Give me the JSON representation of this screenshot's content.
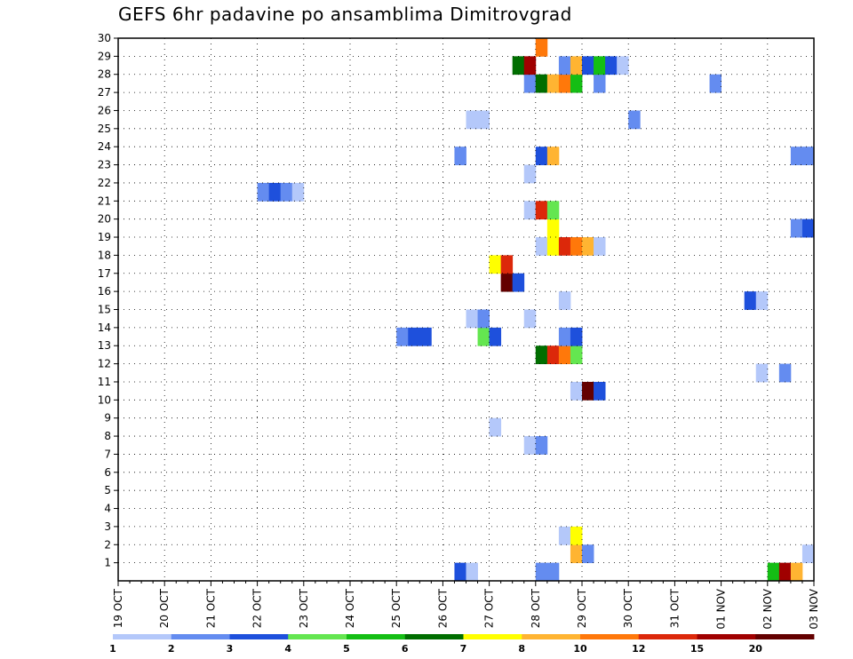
{
  "chart_data": {
    "type": "heatmap",
    "title": "GEFS 6hr padavine po ansamblima Dimitrovgrad",
    "x_labels": [
      "19 OCT",
      "20 OCT",
      "21 OCT",
      "22 OCT",
      "23 OCT",
      "24 OCT",
      "25 OCT",
      "26 OCT",
      "27 OCT",
      "28 OCT",
      "29 OCT",
      "30 OCT",
      "31 OCT",
      "01 NOV",
      "02 NOV",
      "03 NOV"
    ],
    "y_labels": [
      "1",
      "2",
      "3",
      "4",
      "5",
      "6",
      "7",
      "8",
      "9",
      "10",
      "11",
      "12",
      "13",
      "14",
      "15",
      "16",
      "17",
      "18",
      "19",
      "20",
      "21",
      "22",
      "23",
      "24",
      "25",
      "26",
      "27",
      "28",
      "29",
      "30"
    ],
    "members_range": [
      0,
      30
    ],
    "time_step_hours": 6,
    "legend": {
      "labels": [
        "1",
        "2",
        "3",
        "4",
        "5",
        "6",
        "7",
        "8",
        "10",
        "12",
        "15",
        "20"
      ],
      "colors": [
        "#b4c8fa",
        "#648cf0",
        "#1e50dc",
        "#64e650",
        "#14be14",
        "#006e00",
        "#ffff00",
        "#ffb432",
        "#ff780a",
        "#dc280a",
        "#a00000",
        "#640000"
      ]
    },
    "cells": [
      {
        "m": 0,
        "t": 29,
        "c": 2
      },
      {
        "m": 0,
        "t": 30,
        "c": 0
      },
      {
        "m": 0,
        "t": 36,
        "c": 1
      },
      {
        "m": 0,
        "t": 37,
        "c": 1
      },
      {
        "m": 0,
        "t": 56,
        "c": 4
      },
      {
        "m": 0,
        "t": 57,
        "c": 10
      },
      {
        "m": 0,
        "t": 58,
        "c": 7
      },
      {
        "m": 1,
        "t": 39,
        "c": 7
      },
      {
        "m": 1,
        "t": 40,
        "c": 1
      },
      {
        "m": 1,
        "t": 59,
        "c": 0
      },
      {
        "m": 2,
        "t": 38,
        "c": 0
      },
      {
        "m": 2,
        "t": 39,
        "c": 6
      },
      {
        "m": 7,
        "t": 35,
        "c": 0
      },
      {
        "m": 7,
        "t": 36,
        "c": 1
      },
      {
        "m": 8,
        "t": 32,
        "c": 0
      },
      {
        "m": 10,
        "t": 39,
        "c": 0
      },
      {
        "m": 10,
        "t": 40,
        "c": 11
      },
      {
        "m": 10,
        "t": 41,
        "c": 2
      },
      {
        "m": 11,
        "t": 55,
        "c": 0
      },
      {
        "m": 11,
        "t": 57,
        "c": 1
      },
      {
        "m": 12,
        "t": 36,
        "c": 5
      },
      {
        "m": 12,
        "t": 37,
        "c": 9
      },
      {
        "m": 12,
        "t": 38,
        "c": 8
      },
      {
        "m": 12,
        "t": 39,
        "c": 3
      },
      {
        "m": 13,
        "t": 24,
        "c": 1
      },
      {
        "m": 13,
        "t": 25,
        "c": 2
      },
      {
        "m": 13,
        "t": 26,
        "c": 2
      },
      {
        "m": 13,
        "t": 31,
        "c": 3
      },
      {
        "m": 13,
        "t": 32,
        "c": 2
      },
      {
        "m": 13,
        "t": 38,
        "c": 1
      },
      {
        "m": 13,
        "t": 39,
        "c": 2
      },
      {
        "m": 14,
        "t": 30,
        "c": 0
      },
      {
        "m": 14,
        "t": 31,
        "c": 1
      },
      {
        "m": 14,
        "t": 35,
        "c": 0
      },
      {
        "m": 15,
        "t": 38,
        "c": 0
      },
      {
        "m": 15,
        "t": 54,
        "c": 2
      },
      {
        "m": 15,
        "t": 55,
        "c": 0
      },
      {
        "m": 16,
        "t": 33,
        "c": 11
      },
      {
        "m": 16,
        "t": 34,
        "c": 2
      },
      {
        "m": 17,
        "t": 32,
        "c": 6
      },
      {
        "m": 17,
        "t": 33,
        "c": 9
      },
      {
        "m": 18,
        "t": 36,
        "c": 0
      },
      {
        "m": 18,
        "t": 37,
        "c": 6
      },
      {
        "m": 18,
        "t": 38,
        "c": 9
      },
      {
        "m": 18,
        "t": 39,
        "c": 8
      },
      {
        "m": 18,
        "t": 40,
        "c": 7
      },
      {
        "m": 18,
        "t": 41,
        "c": 0
      },
      {
        "m": 19,
        "t": 37,
        "c": 6
      },
      {
        "m": 19,
        "t": 58,
        "c": 1
      },
      {
        "m": 19,
        "t": 59,
        "c": 2
      },
      {
        "m": 20,
        "t": 35,
        "c": 0
      },
      {
        "m": 20,
        "t": 36,
        "c": 9
      },
      {
        "m": 20,
        "t": 37,
        "c": 3
      },
      {
        "m": 21,
        "t": 12,
        "c": 1
      },
      {
        "m": 21,
        "t": 13,
        "c": 2
      },
      {
        "m": 21,
        "t": 14,
        "c": 1
      },
      {
        "m": 21,
        "t": 15,
        "c": 0
      },
      {
        "m": 22,
        "t": 35,
        "c": 0
      },
      {
        "m": 23,
        "t": 29,
        "c": 1
      },
      {
        "m": 23,
        "t": 36,
        "c": 2
      },
      {
        "m": 23,
        "t": 37,
        "c": 7
      },
      {
        "m": 23,
        "t": 58,
        "c": 1
      },
      {
        "m": 23,
        "t": 59,
        "c": 1
      },
      {
        "m": 25,
        "t": 30,
        "c": 0
      },
      {
        "m": 25,
        "t": 31,
        "c": 0
      },
      {
        "m": 25,
        "t": 44,
        "c": 1
      },
      {
        "m": 27,
        "t": 35,
        "c": 1
      },
      {
        "m": 27,
        "t": 36,
        "c": 5
      },
      {
        "m": 27,
        "t": 37,
        "c": 7
      },
      {
        "m": 27,
        "t": 38,
        "c": 8
      },
      {
        "m": 27,
        "t": 39,
        "c": 4
      },
      {
        "m": 27,
        "t": 41,
        "c": 1
      },
      {
        "m": 27,
        "t": 51,
        "c": 1
      },
      {
        "m": 28,
        "t": 34,
        "c": 5
      },
      {
        "m": 28,
        "t": 35,
        "c": 10
      },
      {
        "m": 28,
        "t": 38,
        "c": 1
      },
      {
        "m": 28,
        "t": 39,
        "c": 7
      },
      {
        "m": 28,
        "t": 40,
        "c": 2
      },
      {
        "m": 28,
        "t": 41,
        "c": 4
      },
      {
        "m": 28,
        "t": 42,
        "c": 2
      },
      {
        "m": 28,
        "t": 43,
        "c": 0
      },
      {
        "m": 29,
        "t": 36,
        "c": 8
      }
    ]
  }
}
